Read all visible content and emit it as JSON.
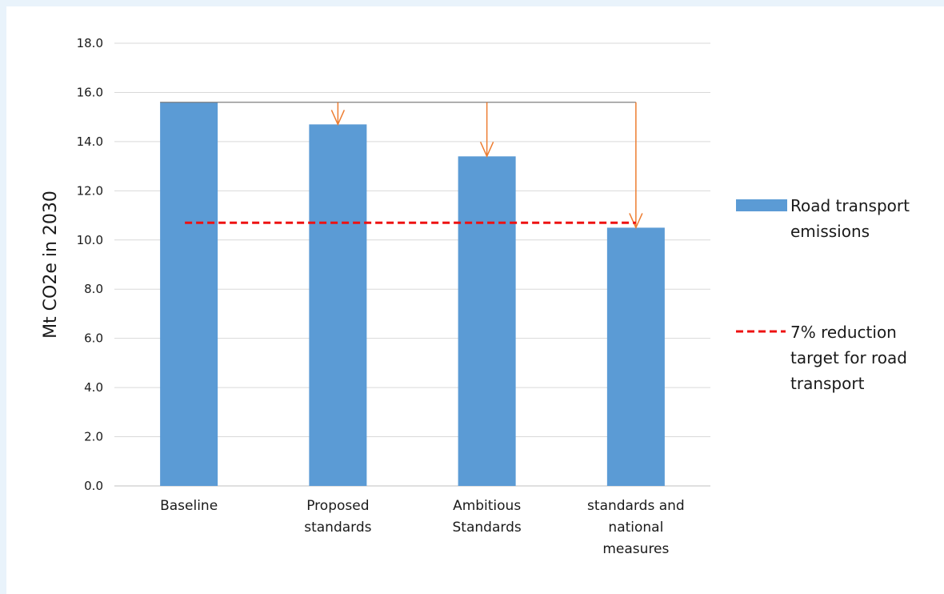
{
  "chart_data": {
    "type": "bar",
    "categories": [
      [
        "Baseline"
      ],
      [
        "Proposed",
        "standards"
      ],
      [
        "Ambitious",
        "Standards"
      ],
      [
        "standards and",
        "national",
        "measures"
      ]
    ],
    "series": [
      {
        "name": "Road transport emissions",
        "values": [
          15.6,
          14.7,
          13.4,
          10.5
        ]
      }
    ],
    "reference_line": {
      "name": "7% reduction target for road transport",
      "value": 10.7
    },
    "ylabel": "Mt CO2e in 2030",
    "xlabel": "",
    "ylim": [
      0,
      18
    ],
    "yticks": [
      "0.0",
      "2.0",
      "4.0",
      "6.0",
      "8.0",
      "10.0",
      "12.0",
      "14.0",
      "16.0",
      "18.0"
    ],
    "grid": true,
    "legend_position": "right",
    "legend": [
      {
        "lines": [
          "Road transport",
          "emissions"
        ],
        "kind": "bar"
      },
      {
        "lines": [
          "7% reduction",
          "target for road",
          "transport"
        ],
        "kind": "dashed-line"
      }
    ],
    "arrows": [
      {
        "from_value": 15.6,
        "to_category": 1,
        "to_value": 14.7
      },
      {
        "from_value": 15.6,
        "to_category": 2,
        "to_value": 13.4
      },
      {
        "from_value": 15.6,
        "to_category": 3,
        "to_value": 10.5
      }
    ],
    "colors": {
      "bar": "#5b9bd5",
      "target": "#ee1111",
      "arrow": "#ed7d31",
      "grid": "#d9d9d9",
      "connector": "#7f7f7f"
    }
  }
}
